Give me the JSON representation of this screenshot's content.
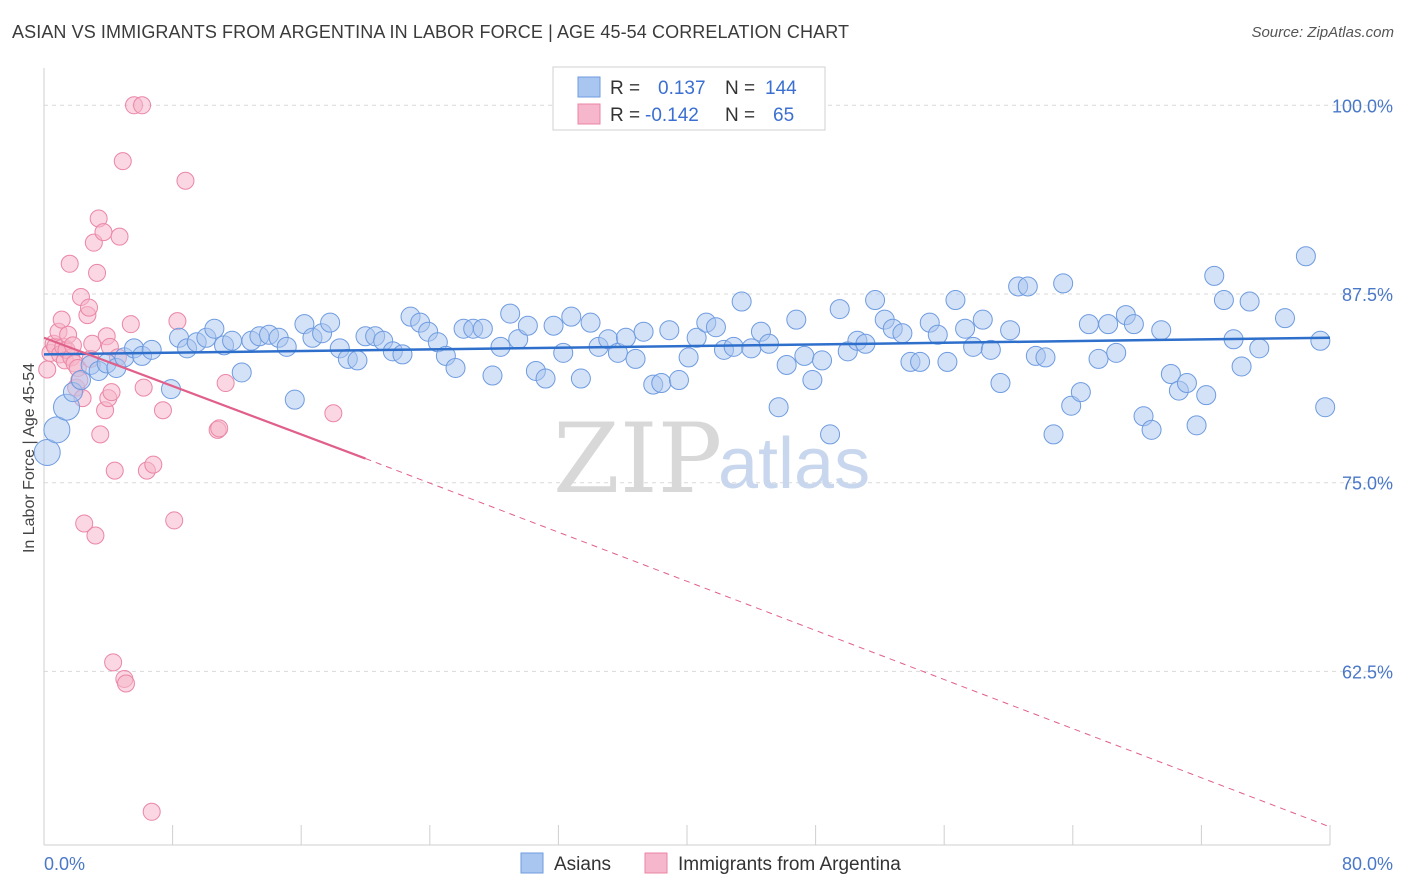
{
  "title": "ASIAN VS IMMIGRANTS FROM ARGENTINA IN LABOR FORCE | AGE 45-54 CORRELATION CHART",
  "source": "Source: ZipAtlas.com",
  "watermark": {
    "zip": "ZIP",
    "atlas": "atlas"
  },
  "colors": {
    "asian_fill": "#a9c6f0",
    "asian_stroke": "#6e9be0",
    "asian_line": "#2f6fcc",
    "arg_fill": "#f6b6cb",
    "arg_stroke": "#eb86a6",
    "arg_line": "#e0608a",
    "tick_text": "#4a78c8",
    "grid": "#d9d9d9"
  },
  "legend": {
    "rows": [
      {
        "r_label": "R =",
        "r_value": "0.137",
        "n_label": "N =",
        "n_value": "144"
      },
      {
        "r_label": "R =",
        "r_value": "-0.142",
        "n_label": "N =",
        "n_value": "65"
      }
    ]
  },
  "chart_data": {
    "type": "scatter",
    "xlabel": "",
    "ylabel": "In Labor Force | Age 45-54",
    "xlim": [
      0,
      80
    ],
    "ylim": [
      51,
      103
    ],
    "x_tick_labels": [
      {
        "value": 0,
        "label": "0.0%"
      },
      {
        "value": 80,
        "label": "80.0%"
      }
    ],
    "y_tick_labels": [
      {
        "value": 100,
        "label": "100.0%"
      },
      {
        "value": 87.5,
        "label": "87.5%"
      },
      {
        "value": 75,
        "label": "75.0%"
      },
      {
        "value": 62.5,
        "label": "62.5%"
      }
    ],
    "grid": "horizontal dashed",
    "legend_position": "top-center",
    "series": [
      {
        "name": "Asians",
        "trend": {
          "x": [
            0,
            80
          ],
          "y": [
            83.5,
            84.6
          ],
          "dashed_extension": false
        },
        "points": [
          [
            0.2,
            77.0
          ],
          [
            0.8,
            78.5
          ],
          [
            1.4,
            80.0
          ],
          [
            1.8,
            81.0
          ],
          [
            2.3,
            81.8
          ],
          [
            2.9,
            82.8
          ],
          [
            3.4,
            82.4
          ],
          [
            3.9,
            82.9
          ],
          [
            4.5,
            82.6
          ],
          [
            5.0,
            83.3
          ],
          [
            5.6,
            83.9
          ],
          [
            6.1,
            83.4
          ],
          [
            6.7,
            83.8
          ],
          [
            7.9,
            81.2
          ],
          [
            8.4,
            84.6
          ],
          [
            8.9,
            83.9
          ],
          [
            9.5,
            84.3
          ],
          [
            10.1,
            84.6
          ],
          [
            10.6,
            85.2
          ],
          [
            11.2,
            84.1
          ],
          [
            11.7,
            84.4
          ],
          [
            12.3,
            82.3
          ],
          [
            12.9,
            84.4
          ],
          [
            13.4,
            84.7
          ],
          [
            14.0,
            84.8
          ],
          [
            14.6,
            84.6
          ],
          [
            15.1,
            84.0
          ],
          [
            15.6,
            80.5
          ],
          [
            16.2,
            85.5
          ],
          [
            16.7,
            84.6
          ],
          [
            17.3,
            84.9
          ],
          [
            17.8,
            85.6
          ],
          [
            18.4,
            83.9
          ],
          [
            18.9,
            83.2
          ],
          [
            19.5,
            83.1
          ],
          [
            20.0,
            84.7
          ],
          [
            20.6,
            84.7
          ],
          [
            21.1,
            84.4
          ],
          [
            21.7,
            83.7
          ],
          [
            22.3,
            83.5
          ],
          [
            22.8,
            86.0
          ],
          [
            23.4,
            85.6
          ],
          [
            23.9,
            85.0
          ],
          [
            24.5,
            84.3
          ],
          [
            25.0,
            83.4
          ],
          [
            25.6,
            82.6
          ],
          [
            26.1,
            85.2
          ],
          [
            26.7,
            85.2
          ],
          [
            27.3,
            85.2
          ],
          [
            27.9,
            82.1
          ],
          [
            28.4,
            84.0
          ],
          [
            29.0,
            86.2
          ],
          [
            29.5,
            84.5
          ],
          [
            30.1,
            85.4
          ],
          [
            30.6,
            82.4
          ],
          [
            31.2,
            81.9
          ],
          [
            31.7,
            85.4
          ],
          [
            32.3,
            83.6
          ],
          [
            32.8,
            86.0
          ],
          [
            33.4,
            81.9
          ],
          [
            34.0,
            85.6
          ],
          [
            34.5,
            84.0
          ],
          [
            35.1,
            84.5
          ],
          [
            35.7,
            83.6
          ],
          [
            36.2,
            84.6
          ],
          [
            36.8,
            83.2
          ],
          [
            37.3,
            85.0
          ],
          [
            37.9,
            81.5
          ],
          [
            38.4,
            81.6
          ],
          [
            38.9,
            85.1
          ],
          [
            39.5,
            81.8
          ],
          [
            40.1,
            83.3
          ],
          [
            40.6,
            84.6
          ],
          [
            41.2,
            85.6
          ],
          [
            41.8,
            85.3
          ],
          [
            42.3,
            83.8
          ],
          [
            42.9,
            84.0
          ],
          [
            43.4,
            87.0
          ],
          [
            44.0,
            83.9
          ],
          [
            44.6,
            85.0
          ],
          [
            45.1,
            84.2
          ],
          [
            45.7,
            80.0
          ],
          [
            46.2,
            82.8
          ],
          [
            46.8,
            85.8
          ],
          [
            47.3,
            83.4
          ],
          [
            47.8,
            81.8
          ],
          [
            48.4,
            83.1
          ],
          [
            48.9,
            78.2
          ],
          [
            49.5,
            86.5
          ],
          [
            50.0,
            83.7
          ],
          [
            50.6,
            84.4
          ],
          [
            51.1,
            84.2
          ],
          [
            51.7,
            87.1
          ],
          [
            52.3,
            85.8
          ],
          [
            52.8,
            85.2
          ],
          [
            53.4,
            84.9
          ],
          [
            53.9,
            83.0
          ],
          [
            54.5,
            83.0
          ],
          [
            55.1,
            85.6
          ],
          [
            55.6,
            84.8
          ],
          [
            56.2,
            83.0
          ],
          [
            56.7,
            87.1
          ],
          [
            57.3,
            85.2
          ],
          [
            57.8,
            84.0
          ],
          [
            58.4,
            85.8
          ],
          [
            58.9,
            83.8
          ],
          [
            59.5,
            81.6
          ],
          [
            60.1,
            85.1
          ],
          [
            60.6,
            88.0
          ],
          [
            61.2,
            88.0
          ],
          [
            61.7,
            83.4
          ],
          [
            62.3,
            83.3
          ],
          [
            62.8,
            78.2
          ],
          [
            63.4,
            88.2
          ],
          [
            63.9,
            80.1
          ],
          [
            64.5,
            81.0
          ],
          [
            65.0,
            85.5
          ],
          [
            65.6,
            83.2
          ],
          [
            66.2,
            85.5
          ],
          [
            66.7,
            83.6
          ],
          [
            67.3,
            86.1
          ],
          [
            67.8,
            85.5
          ],
          [
            68.4,
            79.4
          ],
          [
            68.9,
            78.5
          ],
          [
            69.5,
            85.1
          ],
          [
            70.1,
            82.2
          ],
          [
            70.6,
            81.1
          ],
          [
            71.1,
            81.6
          ],
          [
            71.7,
            78.8
          ],
          [
            72.3,
            80.8
          ],
          [
            72.8,
            88.7
          ],
          [
            73.4,
            87.1
          ],
          [
            74.0,
            84.5
          ],
          [
            74.5,
            82.7
          ],
          [
            75.0,
            87.0
          ],
          [
            75.6,
            83.9
          ],
          [
            77.2,
            85.9
          ],
          [
            78.5,
            90.0
          ],
          [
            79.4,
            84.4
          ],
          [
            79.7,
            80.0
          ]
        ],
        "sizes": {
          "0.2": "large",
          "0.8": "large",
          "1.4": "large"
        }
      },
      {
        "name": "Immigrants from Argentina",
        "trend": {
          "x": [
            0,
            20
          ],
          "y": [
            84.6,
            76.6
          ],
          "dashed_extension_to": [
            80,
            52.2
          ]
        },
        "points": [
          [
            0.2,
            82.5
          ],
          [
            0.4,
            83.6
          ],
          [
            0.6,
            84.2
          ],
          [
            0.7,
            84.0
          ],
          [
            0.9,
            85.0
          ],
          [
            1.0,
            83.5
          ],
          [
            1.1,
            85.8
          ],
          [
            1.2,
            84.0
          ],
          [
            1.3,
            83.1
          ],
          [
            1.4,
            83.8
          ],
          [
            1.5,
            84.8
          ],
          [
            1.6,
            89.5
          ],
          [
            1.7,
            83.3
          ],
          [
            1.8,
            84.1
          ],
          [
            1.9,
            82.9
          ],
          [
            2.0,
            81.3
          ],
          [
            2.1,
            82.6
          ],
          [
            2.2,
            81.8
          ],
          [
            2.3,
            87.3
          ],
          [
            2.4,
            80.6
          ],
          [
            2.5,
            72.3
          ],
          [
            2.7,
            86.1
          ],
          [
            2.8,
            86.6
          ],
          [
            2.9,
            83.2
          ],
          [
            3.0,
            84.2
          ],
          [
            3.1,
            90.9
          ],
          [
            3.2,
            71.5
          ],
          [
            3.3,
            88.9
          ],
          [
            3.4,
            92.5
          ],
          [
            3.5,
            78.2
          ],
          [
            3.7,
            91.6
          ],
          [
            3.8,
            79.8
          ],
          [
            3.9,
            84.7
          ],
          [
            4.0,
            80.6
          ],
          [
            4.1,
            84.0
          ],
          [
            4.2,
            81.0
          ],
          [
            4.3,
            63.1
          ],
          [
            4.4,
            75.8
          ],
          [
            4.6,
            83.3
          ],
          [
            4.7,
            91.3
          ],
          [
            4.9,
            96.3
          ],
          [
            5.0,
            62.0
          ],
          [
            5.1,
            61.7
          ],
          [
            5.4,
            85.5
          ],
          [
            5.6,
            100.0
          ],
          [
            6.1,
            100.0
          ],
          [
            6.2,
            81.3
          ],
          [
            6.4,
            75.8
          ],
          [
            6.7,
            53.2
          ],
          [
            6.8,
            76.2
          ],
          [
            7.4,
            79.8
          ],
          [
            8.1,
            72.5
          ],
          [
            8.3,
            85.7
          ],
          [
            8.8,
            95.0
          ],
          [
            10.8,
            78.5
          ],
          [
            10.9,
            78.6
          ],
          [
            11.3,
            81.6
          ],
          [
            18.0,
            79.6
          ]
        ]
      }
    ]
  },
  "bottom_legend": [
    {
      "label": "Asians"
    },
    {
      "label": "Immigrants from Argentina"
    }
  ]
}
